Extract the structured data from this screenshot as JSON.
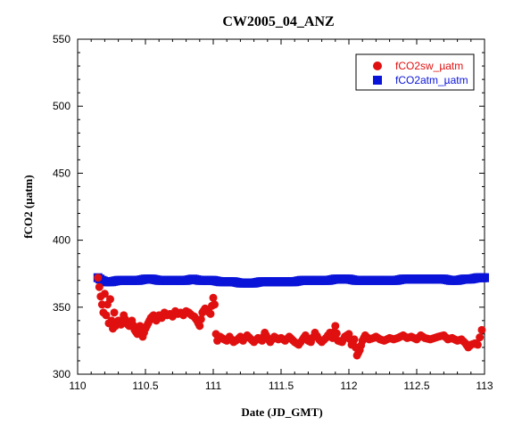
{
  "chart_data": {
    "type": "scatter",
    "title": "CW2005_04_ANZ",
    "xlabel": "Date (JD_GMT)",
    "ylabel": "fCO2 (µatm)",
    "xlim": [
      110,
      113
    ],
    "ylim": [
      300,
      550
    ],
    "x_ticks": [
      110,
      110.5,
      111,
      111.5,
      112,
      112.5,
      113
    ],
    "x_tick_labels": [
      "110",
      "110.5",
      "111",
      "111.5",
      "112",
      "112.5",
      "113"
    ],
    "y_ticks": [
      300,
      350,
      400,
      450,
      500,
      550
    ],
    "y_tick_labels": [
      "300",
      "350",
      "400",
      "450",
      "500",
      "550"
    ],
    "legend_position": "top-right",
    "grid": false,
    "series": [
      {
        "name": "fCO2sw_µatm",
        "color": "#e01010",
        "marker": "circle",
        "points": [
          [
            110.15,
            372
          ],
          [
            110.16,
            365
          ],
          [
            110.17,
            358
          ],
          [
            110.18,
            352
          ],
          [
            110.19,
            346
          ],
          [
            110.2,
            360
          ],
          [
            110.21,
            344
          ],
          [
            110.22,
            352
          ],
          [
            110.23,
            338
          ],
          [
            110.24,
            356
          ],
          [
            110.25,
            340
          ],
          [
            110.26,
            334
          ],
          [
            110.27,
            346
          ],
          [
            110.28,
            336
          ],
          [
            110.3,
            340
          ],
          [
            110.32,
            337
          ],
          [
            110.34,
            344
          ],
          [
            110.36,
            338
          ],
          [
            110.38,
            336
          ],
          [
            110.4,
            340
          ],
          [
            110.42,
            333
          ],
          [
            110.44,
            330
          ],
          [
            110.46,
            336
          ],
          [
            110.48,
            328
          ],
          [
            110.5,
            334
          ],
          [
            110.52,
            338
          ],
          [
            110.54,
            342
          ],
          [
            110.56,
            344
          ],
          [
            110.58,
            340
          ],
          [
            110.6,
            344
          ],
          [
            110.62,
            342
          ],
          [
            110.64,
            346
          ],
          [
            110.66,
            344
          ],
          [
            110.68,
            345
          ],
          [
            110.7,
            343
          ],
          [
            110.72,
            347
          ],
          [
            110.74,
            345
          ],
          [
            110.76,
            346
          ],
          [
            110.78,
            344
          ],
          [
            110.8,
            347
          ],
          [
            110.82,
            346
          ],
          [
            110.84,
            344
          ],
          [
            110.86,
            343
          ],
          [
            110.88,
            340
          ],
          [
            110.9,
            336
          ],
          [
            110.92,
            346
          ],
          [
            110.94,
            349
          ],
          [
            110.96,
            347
          ],
          [
            110.98,
            345
          ],
          [
            111.0,
            357
          ],
          [
            111.01,
            352
          ],
          [
            111.02,
            330
          ],
          [
            111.03,
            325
          ],
          [
            111.05,
            328
          ],
          [
            111.08,
            326
          ],
          [
            111.1,
            325
          ],
          [
            111.12,
            328
          ],
          [
            111.15,
            324
          ],
          [
            111.18,
            326
          ],
          [
            111.2,
            328
          ],
          [
            111.22,
            325
          ],
          [
            111.25,
            329
          ],
          [
            111.28,
            326
          ],
          [
            111.3,
            324
          ],
          [
            111.33,
            327
          ],
          [
            111.36,
            325
          ],
          [
            111.38,
            331
          ],
          [
            111.4,
            327
          ],
          [
            111.42,
            324
          ],
          [
            111.45,
            328
          ],
          [
            111.48,
            326
          ],
          [
            111.5,
            327
          ],
          [
            111.53,
            325
          ],
          [
            111.56,
            328
          ],
          [
            111.58,
            326
          ],
          [
            111.6,
            324
          ],
          [
            111.63,
            322
          ],
          [
            111.66,
            326
          ],
          [
            111.68,
            329
          ],
          [
            111.7,
            325
          ],
          [
            111.72,
            324
          ],
          [
            111.75,
            331
          ],
          [
            111.78,
            326
          ],
          [
            111.8,
            324
          ],
          [
            111.83,
            327
          ],
          [
            111.86,
            331
          ],
          [
            111.88,
            327
          ],
          [
            111.9,
            336
          ],
          [
            111.92,
            325
          ],
          [
            111.95,
            324
          ],
          [
            111.97,
            328
          ],
          [
            112.0,
            330
          ],
          [
            112.02,
            322
          ],
          [
            112.04,
            326
          ],
          [
            112.06,
            314
          ],
          [
            112.08,
            318
          ],
          [
            112.1,
            325
          ],
          [
            112.12,
            329
          ],
          [
            112.15,
            326
          ],
          [
            112.18,
            327
          ],
          [
            112.2,
            328
          ],
          [
            112.23,
            326
          ],
          [
            112.26,
            325
          ],
          [
            112.3,
            327
          ],
          [
            112.33,
            326
          ],
          [
            112.36,
            327
          ],
          [
            112.4,
            329
          ],
          [
            112.43,
            327
          ],
          [
            112.46,
            328
          ],
          [
            112.5,
            326
          ],
          [
            112.53,
            329
          ],
          [
            112.56,
            327
          ],
          [
            112.6,
            326
          ],
          [
            112.63,
            327
          ],
          [
            112.66,
            328
          ],
          [
            112.7,
            329
          ],
          [
            112.73,
            326
          ],
          [
            112.76,
            327
          ],
          [
            112.8,
            325
          ],
          [
            112.83,
            326
          ],
          [
            112.86,
            323
          ],
          [
            112.88,
            320
          ],
          [
            112.9,
            322
          ],
          [
            112.93,
            323
          ],
          [
            112.95,
            322
          ],
          [
            112.98,
            333
          ]
        ]
      },
      {
        "name": "fCO2atm_µatm",
        "color": "#0a14d8",
        "marker": "square",
        "points": [
          [
            110.15,
            372
          ],
          [
            110.18,
            370
          ],
          [
            110.2,
            369
          ],
          [
            110.25,
            369
          ],
          [
            110.3,
            370
          ],
          [
            110.35,
            370
          ],
          [
            110.4,
            370
          ],
          [
            110.45,
            370
          ],
          [
            110.5,
            371
          ],
          [
            110.55,
            371
          ],
          [
            110.6,
            370
          ],
          [
            110.65,
            370
          ],
          [
            110.7,
            370
          ],
          [
            110.75,
            370
          ],
          [
            110.8,
            370
          ],
          [
            110.85,
            371
          ],
          [
            110.9,
            370
          ],
          [
            110.95,
            370
          ],
          [
            111.0,
            370
          ],
          [
            111.05,
            369
          ],
          [
            111.1,
            369
          ],
          [
            111.15,
            369
          ],
          [
            111.2,
            368
          ],
          [
            111.25,
            368
          ],
          [
            111.3,
            368
          ],
          [
            111.35,
            369
          ],
          [
            111.4,
            369
          ],
          [
            111.45,
            369
          ],
          [
            111.5,
            369
          ],
          [
            111.55,
            369
          ],
          [
            111.6,
            369
          ],
          [
            111.65,
            370
          ],
          [
            111.7,
            370
          ],
          [
            111.75,
            370
          ],
          [
            111.8,
            370
          ],
          [
            111.85,
            370
          ],
          [
            111.9,
            371
          ],
          [
            111.95,
            371
          ],
          [
            112.0,
            371
          ],
          [
            112.05,
            370
          ],
          [
            112.1,
            370
          ],
          [
            112.15,
            370
          ],
          [
            112.2,
            370
          ],
          [
            112.25,
            370
          ],
          [
            112.3,
            370
          ],
          [
            112.35,
            370
          ],
          [
            112.4,
            371
          ],
          [
            112.45,
            371
          ],
          [
            112.5,
            371
          ],
          [
            112.55,
            371
          ],
          [
            112.6,
            371
          ],
          [
            112.65,
            371
          ],
          [
            112.7,
            371
          ],
          [
            112.75,
            370
          ],
          [
            112.8,
            370
          ],
          [
            112.85,
            371
          ],
          [
            112.9,
            371
          ],
          [
            112.95,
            372
          ],
          [
            113.0,
            372
          ]
        ]
      }
    ]
  }
}
